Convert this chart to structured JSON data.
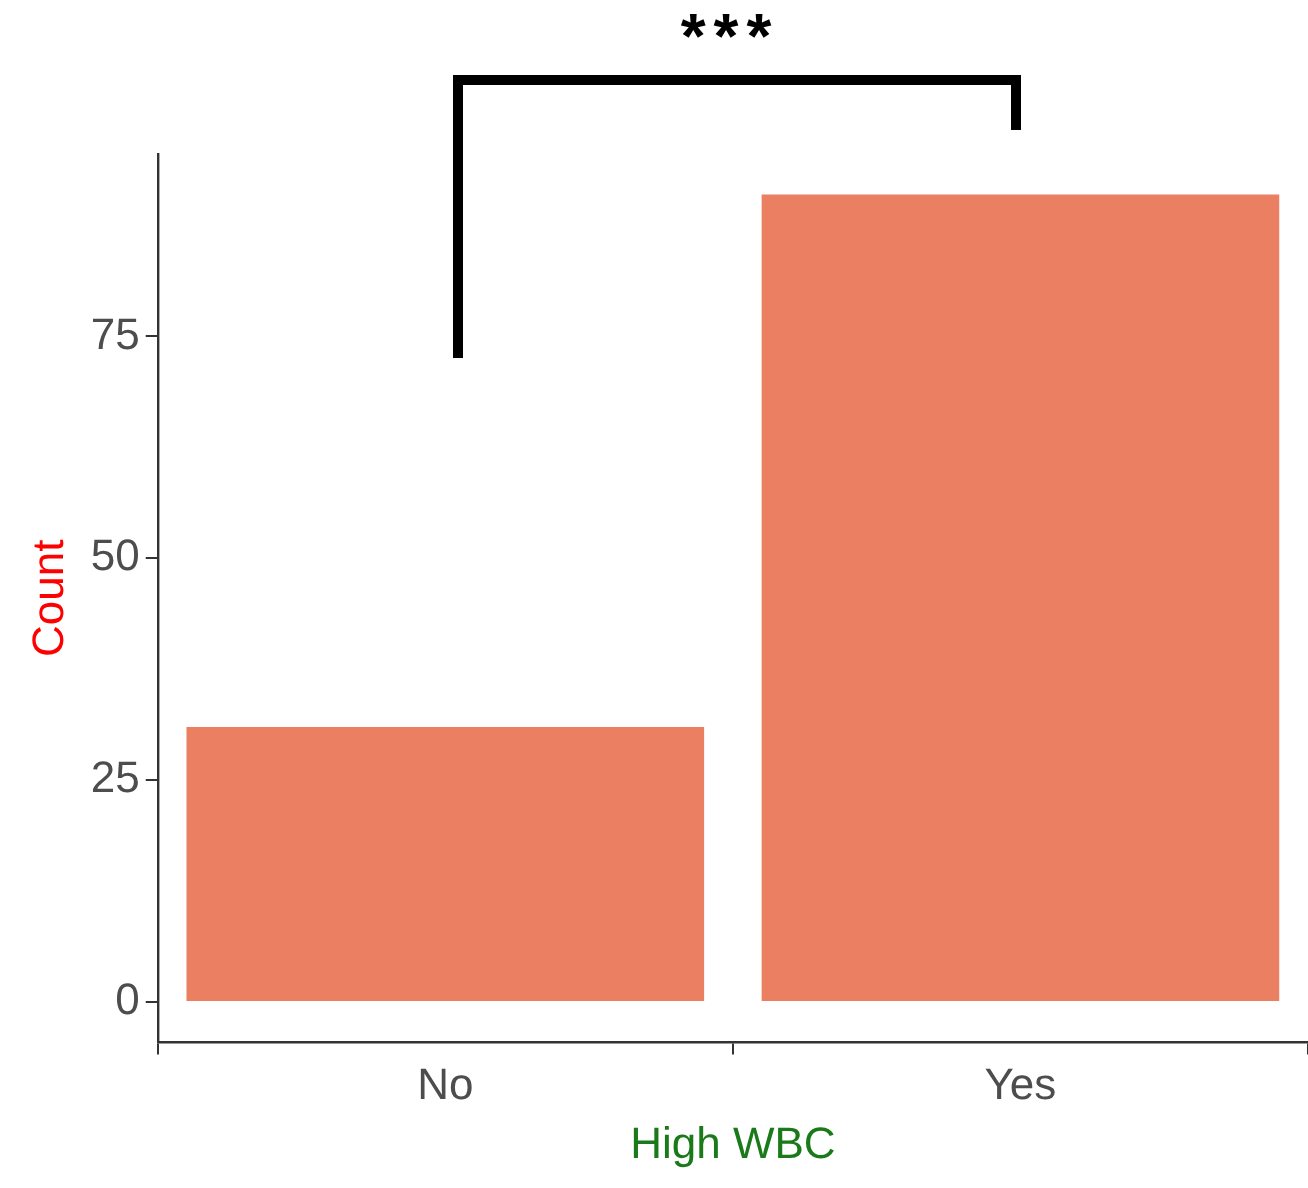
{
  "chart_data": {
    "type": "bar",
    "xlabel": "High WBC",
    "ylabel": "Count",
    "categories": [
      "No",
      "Yes"
    ],
    "values": [
      31,
      91
    ],
    "color": "#ea8061",
    "ylim": [
      -4.55,
      95.55
    ],
    "yticks": [
      0,
      25,
      50,
      75
    ],
    "grid": false,
    "legend": false,
    "annotations": [
      "***"
    ]
  }
}
